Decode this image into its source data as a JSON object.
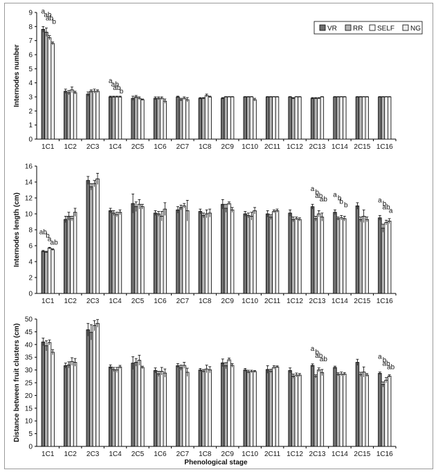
{
  "legend": {
    "entries": [
      {
        "label": "VR",
        "fill": "#6f6f6f"
      },
      {
        "label": "RR",
        "fill": "#b3b3b3"
      },
      {
        "label": "SELF",
        "fill": "#ffffff"
      },
      {
        "label": "NG",
        "fill": "#eeeeee"
      }
    ]
  },
  "x_axis_title": "Phenological stage",
  "chart_data": [
    {
      "type": "bar",
      "ylabel": "Internodes number",
      "ylim": [
        0,
        9
      ],
      "yticks": [
        0,
        1,
        2,
        3,
        4,
        5,
        6,
        7,
        8,
        9
      ],
      "categories": [
        "1C1",
        "1C2",
        "2C3",
        "1C4",
        "2C5",
        "1C6",
        "2C7",
        "1C8",
        "2C9",
        "1C10",
        "2C11",
        "1C12",
        "2C13",
        "1C14",
        "2C15",
        "1C16"
      ],
      "series": [
        {
          "name": "VR",
          "values": [
            7.8,
            3.4,
            3.2,
            3.0,
            2.9,
            2.9,
            3.0,
            2.9,
            2.9,
            3.0,
            3.0,
            3.0,
            2.9,
            3.0,
            3.0,
            3.0
          ],
          "errors": [
            0.2,
            0.15,
            0.15,
            0.05,
            0.15,
            0.1,
            0.05,
            0.05,
            0.05,
            0.02,
            0.02,
            0.02,
            0.05,
            0.02,
            0.02,
            0.02
          ]
        },
        {
          "name": "RR",
          "values": [
            7.6,
            3.3,
            3.4,
            3.0,
            3.0,
            2.9,
            2.8,
            2.9,
            3.0,
            3.0,
            3.0,
            2.9,
            2.9,
            3.0,
            3.0,
            3.0
          ],
          "errors": [
            0.3,
            0.15,
            0.1,
            0.05,
            0.1,
            0.1,
            0.1,
            0.05,
            0.02,
            0.02,
            0.02,
            0.05,
            0.05,
            0.02,
            0.02,
            0.02
          ]
        },
        {
          "name": "SELF",
          "values": [
            7.2,
            3.5,
            3.4,
            3.0,
            2.9,
            2.9,
            2.9,
            3.1,
            3.0,
            3.0,
            3.0,
            3.0,
            2.9,
            3.0,
            3.0,
            3.0
          ],
          "errors": [
            0.15,
            0.2,
            0.15,
            0.05,
            0.1,
            0.1,
            0.1,
            0.1,
            0.02,
            0.02,
            0.02,
            0.02,
            0.05,
            0.02,
            0.02,
            0.02
          ]
        },
        {
          "name": "NG",
          "values": [
            6.8,
            3.3,
            3.4,
            3.0,
            2.8,
            2.7,
            2.8,
            3.0,
            3.0,
            2.8,
            3.0,
            3.0,
            3.0,
            3.0,
            3.0,
            3.0
          ],
          "errors": [
            0.1,
            0.1,
            0.1,
            0.05,
            0.05,
            0.15,
            0.15,
            0.05,
            0.02,
            0.1,
            0.02,
            0.02,
            0.02,
            0.02,
            0.02,
            0.02
          ]
        }
      ],
      "significance": [
        {
          "category": "1C1",
          "series": "VR",
          "text": "a"
        },
        {
          "category": "1C1",
          "series": "RR",
          "text": "ab"
        },
        {
          "category": "1C1",
          "series": "SELF",
          "text": "ab"
        },
        {
          "category": "1C1",
          "series": "NG",
          "text": "b"
        },
        {
          "category": "1C4",
          "series": "VR",
          "text": "a"
        },
        {
          "category": "1C4",
          "series": "RR",
          "text": "ab"
        },
        {
          "category": "1C4",
          "series": "SELF",
          "text": "ab"
        },
        {
          "category": "1C4",
          "series": "NG",
          "text": "b"
        }
      ]
    },
    {
      "type": "bar",
      "ylabel": "Internodes length (cm)",
      "ylim": [
        0,
        16
      ],
      "yticks": [
        0,
        2,
        4,
        6,
        8,
        10,
        12,
        14,
        16
      ],
      "categories": [
        "1C1",
        "1C2",
        "2C3",
        "1C4",
        "2C5",
        "1C6",
        "2C7",
        "1C8",
        "2C9",
        "1C10",
        "2C11",
        "1C12",
        "2C13",
        "1C14",
        "2C15",
        "1C16"
      ],
      "series": [
        {
          "name": "VR",
          "values": [
            5.3,
            9.3,
            14.2,
            10.4,
            11.3,
            10.1,
            10.5,
            10.3,
            11.2,
            10.0,
            10.0,
            10.1,
            10.9,
            10.2,
            11.0,
            9.5
          ],
          "errors": [
            0.1,
            0.4,
            0.5,
            0.3,
            1.2,
            0.3,
            0.4,
            0.3,
            0.6,
            0.3,
            0.4,
            0.4,
            0.3,
            0.3,
            0.4,
            0.3
          ]
        },
        {
          "name": "RR",
          "values": [
            5.2,
            9.7,
            13.4,
            10.1,
            10.9,
            10.0,
            10.8,
            9.8,
            10.7,
            9.8,
            9.6,
            9.3,
            9.4,
            9.4,
            9.3,
            8.2
          ],
          "errors": [
            0.1,
            0.5,
            0.4,
            0.3,
            0.6,
            0.3,
            0.3,
            0.3,
            0.5,
            0.3,
            0.3,
            0.3,
            0.3,
            0.2,
            0.3,
            0.5
          ]
        },
        {
          "name": "SELF",
          "values": [
            5.7,
            9.4,
            13.8,
            9.9,
            11.2,
            9.7,
            11.0,
            10.0,
            11.3,
            9.7,
            10.3,
            9.4,
            10.0,
            9.5,
            9.7,
            8.9
          ],
          "errors": [
            0.1,
            0.3,
            0.4,
            0.3,
            0.6,
            0.6,
            0.3,
            0.5,
            0.2,
            0.5,
            0.2,
            0.2,
            0.4,
            0.3,
            0.8,
            0.3
          ]
        },
        {
          "name": "NG",
          "values": [
            5.5,
            10.2,
            14.4,
            10.2,
            10.9,
            10.6,
            10.4,
            10.1,
            10.5,
            10.4,
            10.4,
            9.3,
            9.6,
            9.4,
            9.3,
            9.1
          ],
          "errors": [
            0.1,
            0.5,
            0.7,
            0.3,
            0.3,
            0.8,
            1.3,
            0.5,
            0.3,
            0.4,
            0.2,
            0.2,
            0.5,
            0.3,
            0.3,
            0.3
          ]
        }
      ],
      "significance": [
        {
          "category": "1C1",
          "series": "VR",
          "text": "ab"
        },
        {
          "category": "1C1",
          "series": "RR",
          "text": "b"
        },
        {
          "category": "1C1",
          "series": "SELF",
          "text": "a"
        },
        {
          "category": "1C1",
          "series": "NG",
          "text": "ab"
        },
        {
          "category": "2C13",
          "series": "VR",
          "text": "a"
        },
        {
          "category": "2C13",
          "series": "RR",
          "text": "b"
        },
        {
          "category": "2C13",
          "series": "SELF",
          "text": "ab"
        },
        {
          "category": "2C13",
          "series": "NG",
          "text": "ab"
        },
        {
          "category": "1C14",
          "series": "VR",
          "text": "a"
        },
        {
          "category": "1C14",
          "series": "RR",
          "text": "b"
        },
        {
          "category": "1C14",
          "series": "SELF",
          "text": "b"
        },
        {
          "category": "1C14",
          "series": "NG",
          "text": "b"
        },
        {
          "category": "1C16",
          "series": "VR",
          "text": "a"
        },
        {
          "category": "1C16",
          "series": "RR",
          "text": "b"
        },
        {
          "category": "1C16",
          "series": "SELF",
          "text": "ab"
        },
        {
          "category": "1C16",
          "series": "NG",
          "text": "a"
        }
      ]
    },
    {
      "type": "bar",
      "ylabel": "Distance between fruit clusters (cm)",
      "ylim": [
        0,
        50
      ],
      "yticks": [
        0,
        5,
        10,
        15,
        20,
        25,
        30,
        35,
        40,
        45,
        50
      ],
      "categories": [
        "1C1",
        "1C2",
        "2C3",
        "1C4",
        "2C5",
        "1C6",
        "2C7",
        "1C8",
        "2C9",
        "1C10",
        "2C11",
        "1C12",
        "2C13",
        "1C14",
        "2C15",
        "1C16"
      ],
      "series": [
        {
          "name": "VR",
          "values": [
            41.0,
            31.7,
            45.8,
            31.2,
            32.7,
            29.8,
            31.7,
            30.0,
            32.8,
            30.0,
            30.2,
            29.8,
            31.8,
            31.0,
            33.0,
            28.7
          ],
          "errors": [
            1.5,
            1.0,
            2.5,
            0.8,
            2.5,
            1.0,
            0.8,
            0.6,
            1.5,
            0.6,
            1.5,
            1.0,
            0.6,
            0.5,
            1.2,
            0.5
          ]
        },
        {
          "name": "RR",
          "values": [
            39.5,
            32.0,
            44.8,
            30.2,
            33.0,
            28.5,
            30.9,
            29.6,
            31.7,
            29.3,
            29.6,
            27.6,
            27.5,
            28.3,
            28.3,
            24.3
          ],
          "errors": [
            2.0,
            1.2,
            3.0,
            0.8,
            1.5,
            1.0,
            1.0,
            0.6,
            1.2,
            0.6,
            0.7,
            0.8,
            0.6,
            0.6,
            0.8,
            1.0
          ]
        },
        {
          "name": "SELF",
          "values": [
            40.8,
            33.3,
            47.4,
            30.0,
            33.8,
            29.5,
            31.8,
            30.4,
            34.0,
            29.4,
            31.0,
            28.0,
            30.0,
            28.4,
            29.2,
            26.0
          ],
          "errors": [
            1.0,
            1.5,
            2.0,
            1.0,
            2.0,
            1.5,
            1.2,
            1.5,
            0.7,
            0.5,
            0.7,
            0.8,
            0.8,
            0.8,
            2.0,
            1.0
          ]
        },
        {
          "name": "NG",
          "values": [
            37.0,
            33.0,
            48.3,
            31.2,
            31.0,
            28.8,
            29.1,
            30.1,
            31.8,
            29.4,
            31.2,
            28.0,
            29.0,
            28.4,
            28.0,
            27.6
          ],
          "errors": [
            1.0,
            1.5,
            1.5,
            0.6,
            0.5,
            1.6,
            1.6,
            1.2,
            0.7,
            0.4,
            0.4,
            0.6,
            1.2,
            0.6,
            0.6,
            0.5
          ]
        }
      ],
      "significance": [
        {
          "category": "2C13",
          "series": "VR",
          "text": "a"
        },
        {
          "category": "2C13",
          "series": "RR",
          "text": "b"
        },
        {
          "category": "2C13",
          "series": "SELF",
          "text": "ab"
        },
        {
          "category": "2C13",
          "series": "NG",
          "text": "ab"
        },
        {
          "category": "1C16",
          "series": "VR",
          "text": "a"
        },
        {
          "category": "1C16",
          "series": "RR",
          "text": "b"
        },
        {
          "category": "1C16",
          "series": "SELF",
          "text": "ab"
        },
        {
          "category": "1C16",
          "series": "NG",
          "text": "ab"
        }
      ]
    }
  ]
}
